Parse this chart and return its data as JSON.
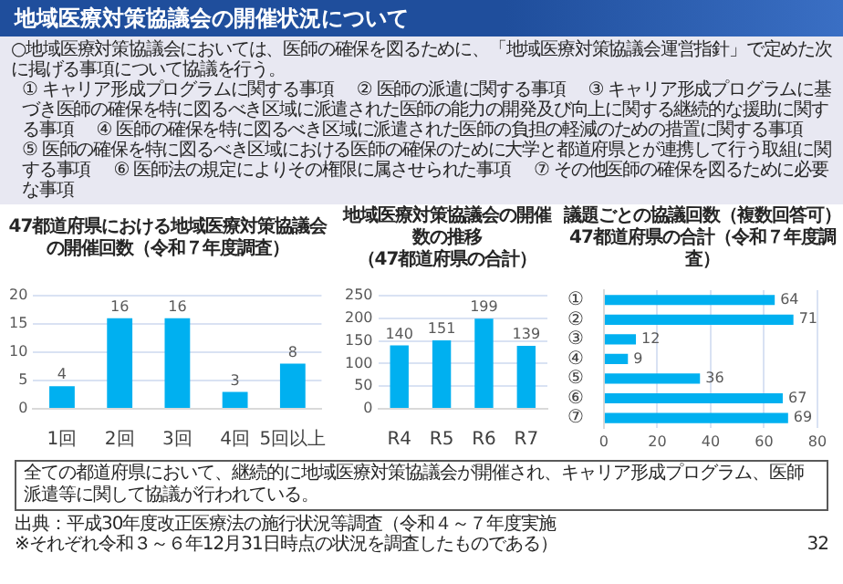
{
  "chart_data": [
    {
      "type": "other",
      "title": "地域医療対策協議会の開催状況について",
      "annotations": [
        "○地域医療対策協議会においては、医師の確保を図るために、「地域医療対策協議会運営指針」で定めた次に掲げる事項について協議を行う。",
        "① キャリア形成プログラムに関する事項",
        "② 医師の派遣に関する事項",
        "③ キャリア形成プログラムに基づき医師の確保を特に図るべき区域に派遣された医師の能力の開発及び向上に関する継続的な援助に関する事項",
        "④ 医師の確保を特に図るべき区域に派遣された医師の負担の軽減のための措置に関する事項",
        "⑤ 医師の確保を特に図るべき区域における医師の確保のために大学と都道府県とが連携して行う取組に関する事項",
        "⑥ 医師法の規定によりその権限に属させられた事項",
        "⑦ その他医師の確保を図るために必要な事項"
      ]
    },
    {
      "type": "bar",
      "title": "47都道府県における地域医療対策協議会の開催回数（令和７年度調査）",
      "categories": [
        "1回",
        "2回",
        "3回",
        "4回",
        "5回以上"
      ],
      "values": [
        4,
        16,
        16,
        3,
        8
      ],
      "color": "#00b0f0",
      "ylim": [
        0,
        20
      ],
      "yticks": [
        0,
        5,
        10,
        15,
        20
      ],
      "grid": "y",
      "data_labels": true
    },
    {
      "type": "bar",
      "title": "地域医療対策協議会の開催数の推移",
      "subtitle": "（47都道府県の合計）",
      "categories": [
        "R4",
        "R5",
        "R6",
        "R7"
      ],
      "values": [
        140,
        151,
        199,
        139
      ],
      "color": "#00b0f0",
      "ylim": [
        0,
        250
      ],
      "yticks": [
        0,
        50,
        100,
        150,
        200,
        250
      ],
      "grid": "y",
      "data_labels": true
    },
    {
      "type": "bar",
      "orientation": "horizontal",
      "title": "議題ごとの協議回数（複数回答可）",
      "subtitle": "47都道府県の合計（令和７年度調査）",
      "categories": [
        "①",
        "②",
        "③",
        "④",
        "⑤",
        "⑥",
        "⑦"
      ],
      "values": [
        64,
        71,
        12,
        9,
        36,
        67,
        69
      ],
      "color": "#00b0f0",
      "xlim": [
        0,
        80
      ],
      "xticks": [
        0,
        20,
        40,
        60,
        80
      ],
      "grid": "x",
      "data_labels": true
    },
    {
      "type": "other",
      "annotations": [
        "全ての都道府県において、継続的に地域医療対策協議会が開催され、キャリア形成プログラム、医師派遣等に関して協議が行われている。",
        "出典：平成30年度改正医療法の施行状況等調査（令和４～７年度実施",
        "※それぞれ令和３～６年12月31日時点の状況を調査したものである）",
        "32"
      ]
    }
  ]
}
